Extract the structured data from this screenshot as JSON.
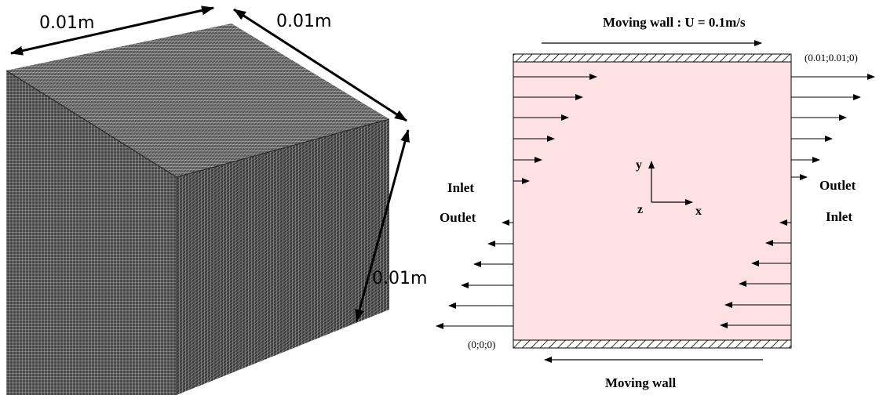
{
  "cube": {
    "dim_top_left": "0.01m",
    "dim_top_right": "0.01m",
    "dim_right": "0.01m"
  },
  "domain": {
    "top_wall_label": "Moving wall : U = 0.1m/s",
    "bottom_wall_label": "Moving wall",
    "corner_top_right": "(0.01;0.01;0)",
    "corner_bottom_left": "(0;0;0)",
    "left_inlet": "Inlet",
    "left_outlet": "Outlet",
    "right_outlet": "Outlet",
    "right_inlet": "Inlet",
    "axis_x": "x",
    "axis_y": "y",
    "axis_z": "z"
  },
  "colors": {
    "cube_face": "#4a4a4a",
    "cube_grid": "#d8d8d8",
    "domain_fill": "#fde1e3",
    "hatch": "#000000"
  }
}
